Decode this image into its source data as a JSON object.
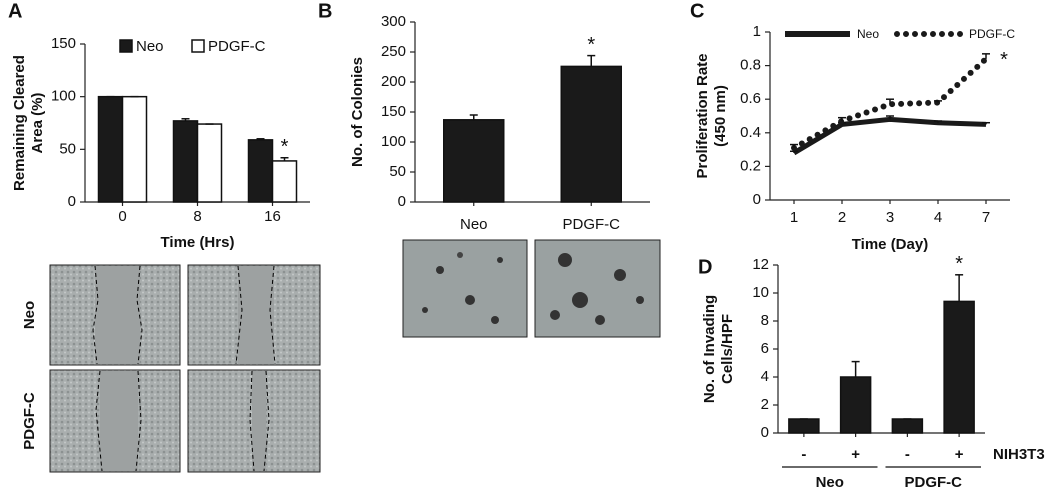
{
  "chart_data": [
    {
      "panel": "A",
      "type": "bar",
      "ylabel": [
        "Remaining Cleared",
        "Area (%)"
      ],
      "xlabel": "Time (Hrs)",
      "categories": [
        "0",
        "8",
        "16"
      ],
      "series": [
        {
          "name": "Neo",
          "color": "#1a1a1a",
          "values": [
            100,
            77,
            59
          ],
          "errors": [
            0,
            2,
            1
          ]
        },
        {
          "name": "PDGF-C",
          "color": "#ffffff",
          "values": [
            100,
            74,
            39
          ],
          "errors": [
            0,
            0,
            3
          ]
        }
      ],
      "ylim": [
        0,
        150
      ],
      "yticks": [
        0,
        50,
        100,
        150
      ],
      "annotation": "*",
      "image_rows": [
        "Neo",
        "PDGF-C"
      ]
    },
    {
      "panel": "B",
      "type": "bar",
      "ylabel": [
        "No. of Colonies"
      ],
      "categories": [
        "Neo",
        "PDGF-C"
      ],
      "series": [
        {
          "name": "Colonies",
          "color": "#1a1a1a",
          "values": [
            137,
            226
          ],
          "errors": [
            8,
            18
          ]
        }
      ],
      "ylim": [
        0,
        300
      ],
      "yticks": [
        0,
        50,
        100,
        150,
        200,
        250,
        300
      ],
      "annotation": "*"
    },
    {
      "panel": "C",
      "type": "line",
      "ylabel": [
        "Proliferation Rate",
        "(450 nm)"
      ],
      "xlabel": "Time (Day)",
      "categories": [
        "1",
        "2",
        "3",
        "4",
        "7"
      ],
      "series": [
        {
          "name": "Neo",
          "color": "#1a1a1a",
          "style": "solid",
          "values": [
            0.28,
            0.45,
            0.48,
            0.46,
            0.45
          ],
          "errors": [
            0.01,
            0.01,
            0.02,
            0.01,
            0.01
          ]
        },
        {
          "name": "PDGF-C",
          "color": "#1a1a1a",
          "style": "dotted",
          "values": [
            0.31,
            0.47,
            0.57,
            0.58,
            0.84
          ],
          "errors": [
            0.02,
            0.02,
            0.03,
            0.01,
            0.03
          ]
        }
      ],
      "ylim": [
        0,
        1
      ],
      "yticks": [
        0,
        0.2,
        0.4,
        0.6,
        0.8,
        1
      ],
      "annotation": "*"
    },
    {
      "panel": "D",
      "type": "bar",
      "ylabel": [
        "No. of Invading",
        "Cells/HPF"
      ],
      "categories": [
        "-",
        "+",
        "-",
        "+"
      ],
      "category_label": "NIH3T3",
      "groups": [
        "Neo",
        "PDGF-C"
      ],
      "series": [
        {
          "name": "Invading cells",
          "color": "#1a1a1a",
          "values": [
            1,
            4,
            1,
            9.4
          ],
          "errors": [
            0,
            1.1,
            0,
            1.9
          ]
        }
      ],
      "ylim": [
        0,
        12
      ],
      "yticks": [
        0,
        2,
        4,
        6,
        8,
        10,
        12
      ],
      "annotation": "*"
    }
  ]
}
